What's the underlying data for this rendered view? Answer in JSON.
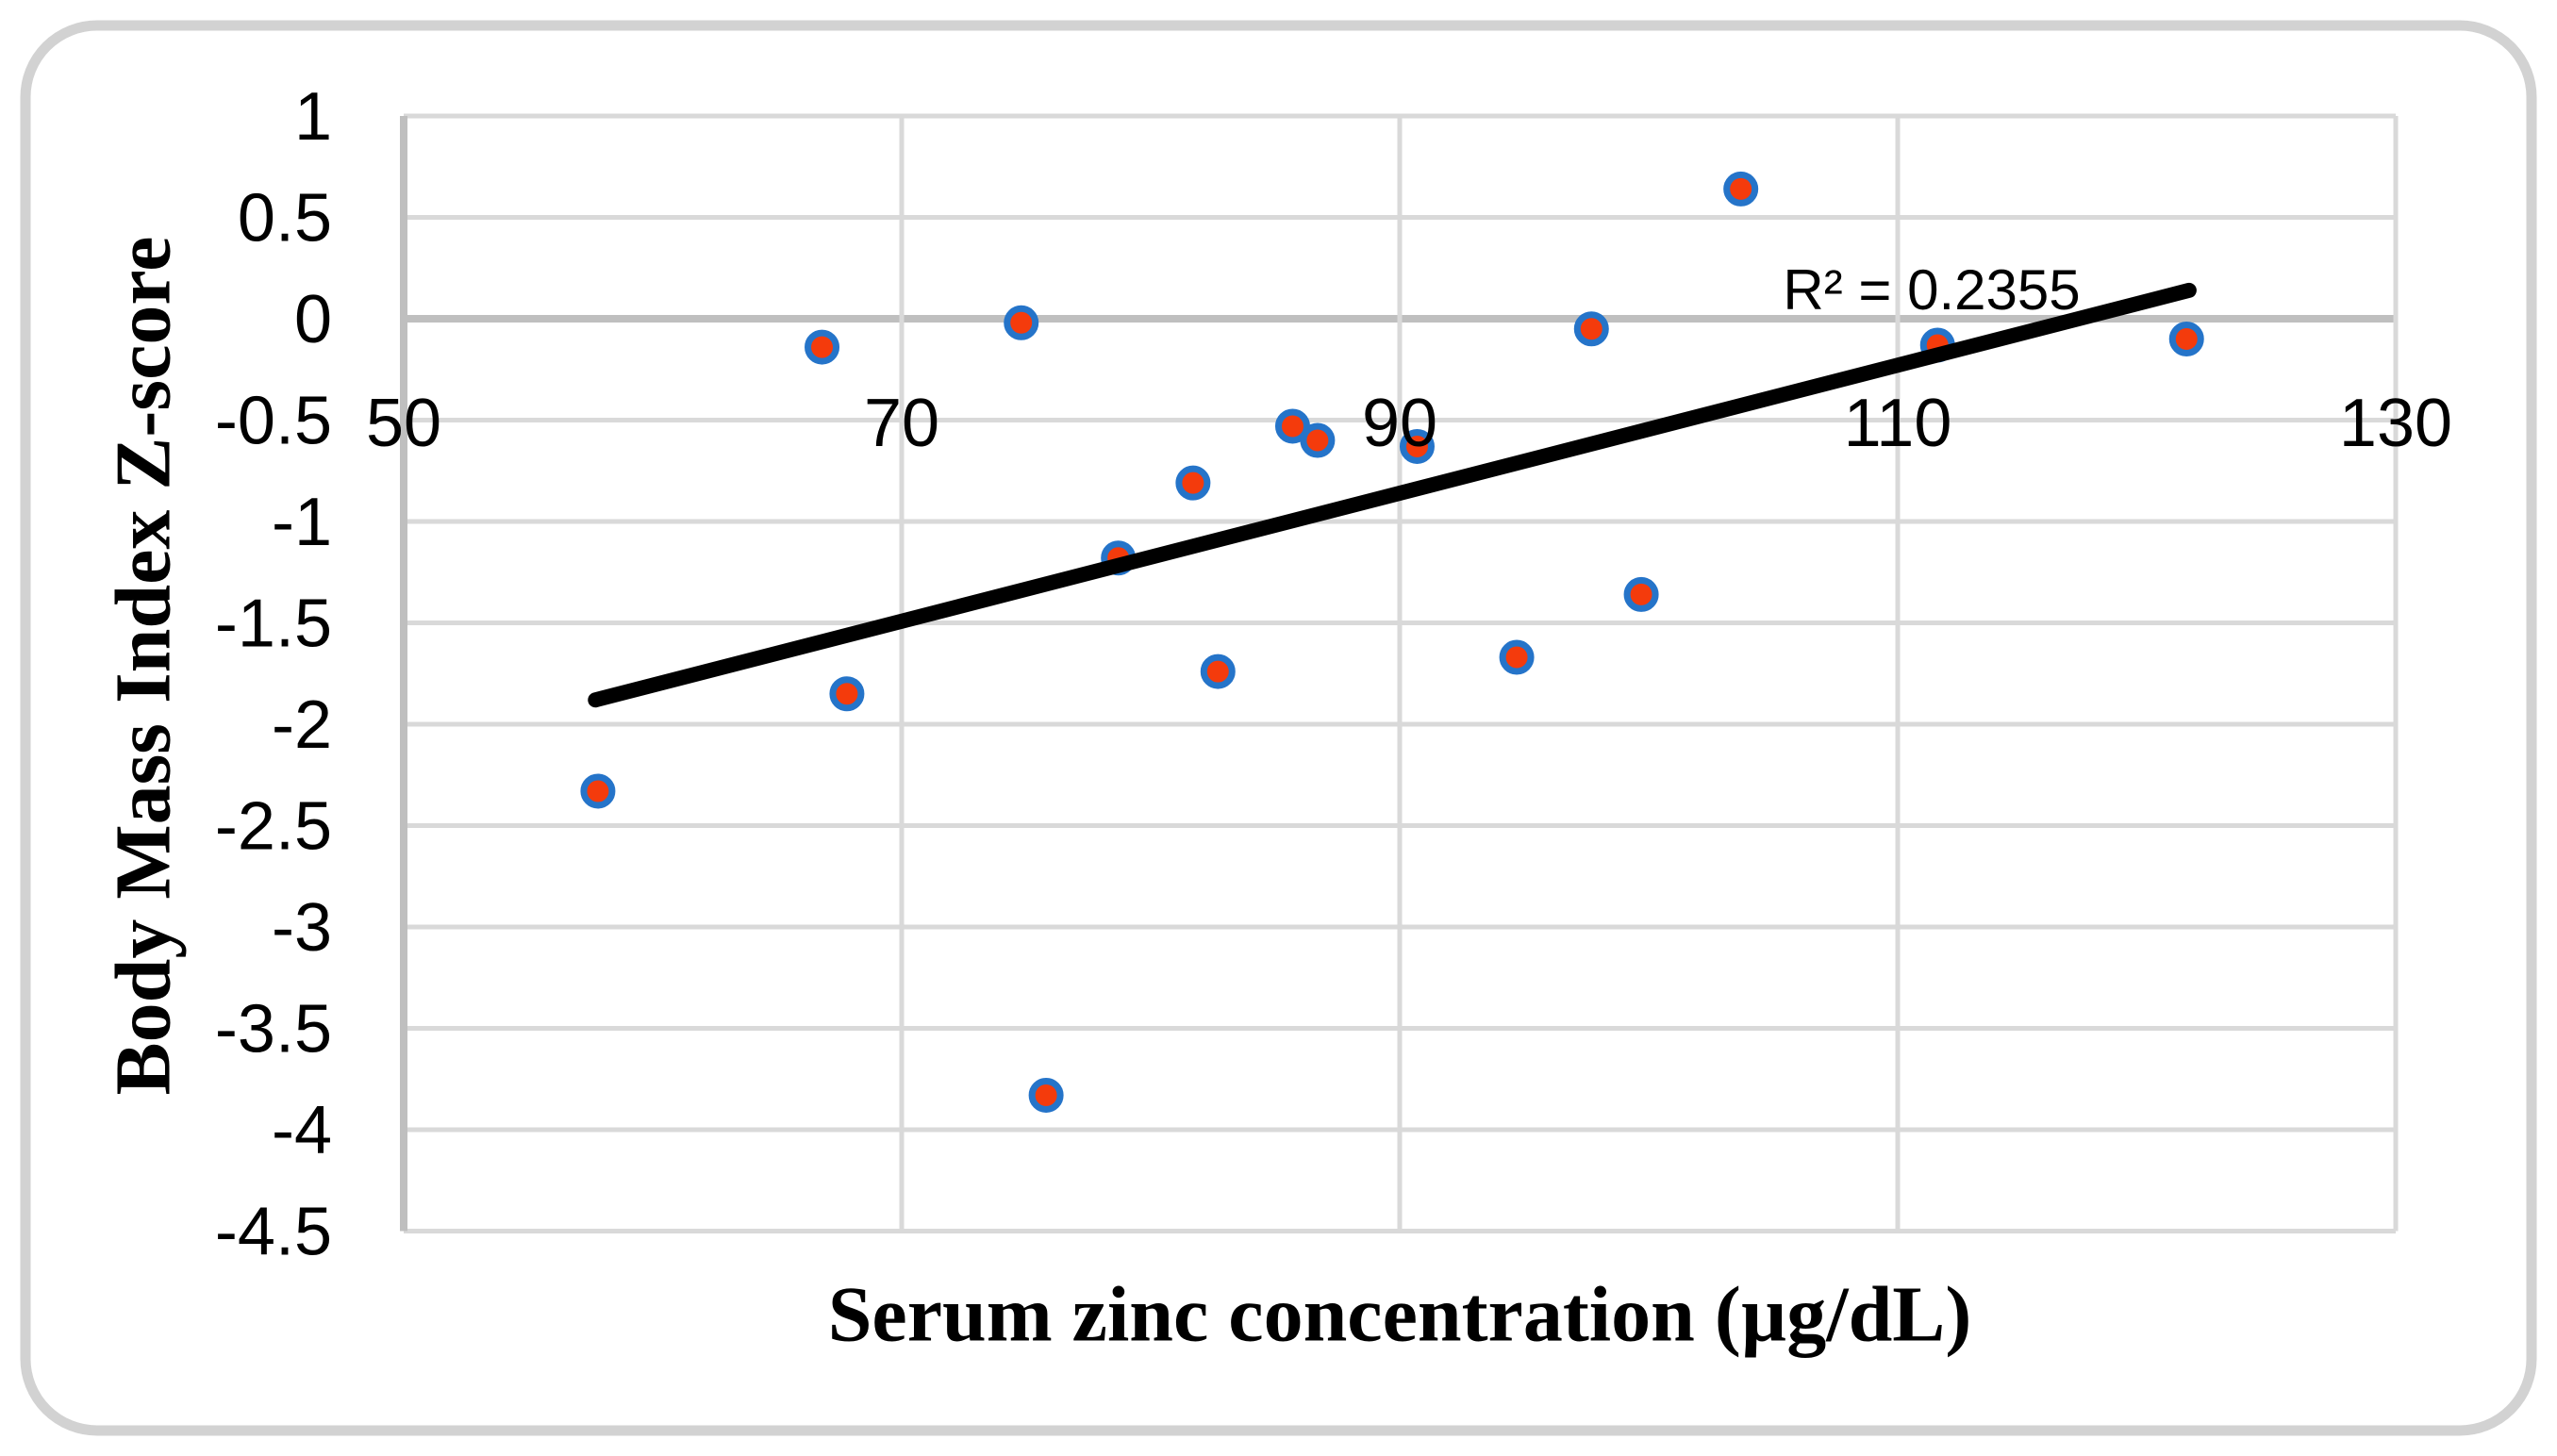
{
  "chart_data": {
    "type": "scatter",
    "title": "",
    "xlabel": "Serum zinc concentration (µg/dL)",
    "ylabel": "Body Mass Index Z-score",
    "xlim": [
      50,
      130
    ],
    "ylim": [
      -4.5,
      1
    ],
    "x_ticks": [
      50,
      70,
      90,
      110,
      130
    ],
    "y_ticks": [
      1,
      0.5,
      0,
      -0.5,
      -1,
      -1.5,
      -2,
      -2.5,
      -3,
      -3.5,
      -4,
      -4.5
    ],
    "grid": true,
    "legend_position": "none",
    "points": [
      [
        57.8,
        -2.33
      ],
      [
        66.8,
        -0.14
      ],
      [
        67.8,
        -1.85
      ],
      [
        74.8,
        -0.02
      ],
      [
        75.8,
        -3.83
      ],
      [
        78.7,
        -1.18
      ],
      [
        81.7,
        -0.81
      ],
      [
        82.7,
        -1.74
      ],
      [
        85.7,
        -0.53
      ],
      [
        86.7,
        -0.6
      ],
      [
        90.7,
        -0.63
      ],
      [
        94.7,
        -1.67
      ],
      [
        97.7,
        -0.05
      ],
      [
        99.7,
        -1.36
      ],
      [
        103.7,
        0.64
      ],
      [
        111.6,
        -0.13
      ],
      [
        121.6,
        -0.1
      ]
    ],
    "trendline": {
      "x1": 57.7,
      "y1": -1.88,
      "x2": 121.7,
      "y2": 0.14
    },
    "annotation": "R² = 0.2355",
    "colors": {
      "marker_fill": "#F43B0C",
      "marker_stroke": "#2574C9",
      "trendline": "#000000",
      "gridline": "#D9D9D9",
      "axis_line": "#BFBFBF",
      "frame": "#D2D2D2",
      "text": "#000000"
    }
  }
}
